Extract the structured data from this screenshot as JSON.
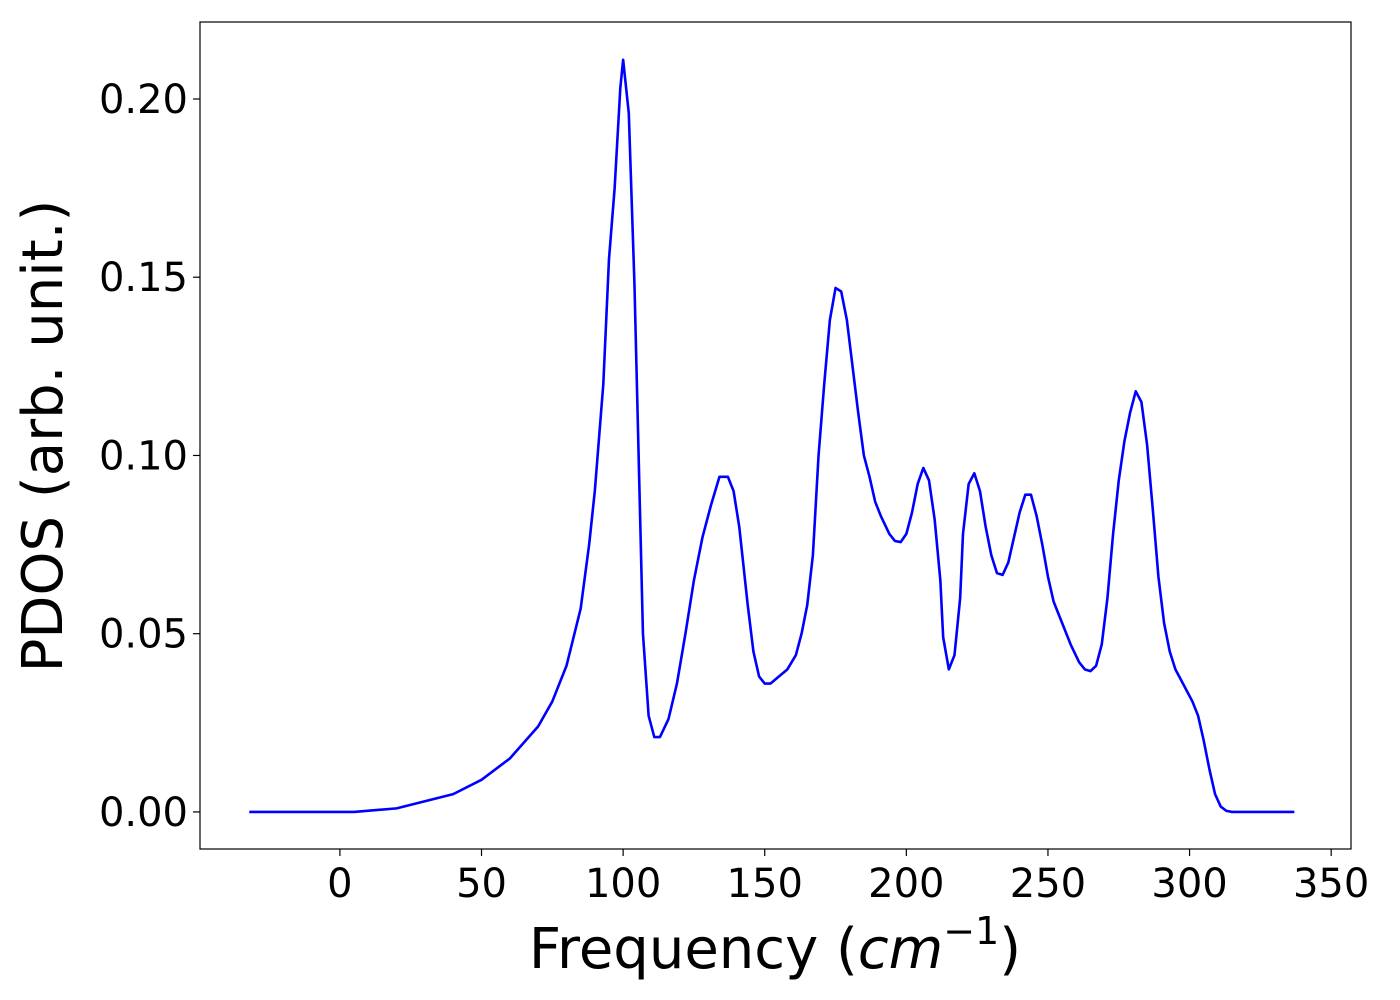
{
  "chart_data": {
    "type": "line",
    "xlabel": [
      "Frequency (",
      "cm",
      "−1",
      ")"
    ],
    "ylabel": "PDOS (arb. unit.)",
    "x": [
      -32,
      5,
      20,
      30,
      40,
      50,
      60,
      70,
      75,
      80,
      85,
      88,
      90,
      93,
      95,
      97,
      99,
      100,
      102,
      104,
      107,
      109,
      111,
      113,
      116,
      119,
      122,
      125,
      128,
      131,
      134,
      137,
      139,
      141,
      144,
      146,
      148,
      150,
      152,
      155,
      158,
      161,
      163,
      165,
      167,
      169,
      171,
      173,
      175,
      177,
      179,
      181,
      183,
      185,
      187,
      189,
      191,
      194,
      196,
      198,
      200,
      202,
      204,
      206,
      208,
      210,
      212,
      213,
      215,
      217,
      219,
      220,
      222,
      224,
      226,
      228,
      230,
      232,
      234,
      236,
      238,
      240,
      242,
      244,
      246,
      248,
      250,
      252,
      255,
      258,
      261,
      263,
      265,
      267,
      269,
      271,
      273,
      275,
      277,
      279,
      281,
      283,
      285,
      287,
      289,
      291,
      293,
      295,
      297,
      299,
      301,
      303,
      305,
      307,
      309,
      311,
      313,
      315,
      337
    ],
    "series": [
      {
        "name": "PDOS",
        "color": "#0000ff",
        "values": [
          0,
          0,
          0.001,
          0.003,
          0.005,
          0.009,
          0.015,
          0.024,
          0.031,
          0.041,
          0.057,
          0.075,
          0.09,
          0.12,
          0.155,
          0.175,
          0.203,
          0.211,
          0.196,
          0.148,
          0.05,
          0.027,
          0.021,
          0.021,
          0.026,
          0.036,
          0.05,
          0.065,
          0.077,
          0.086,
          0.094,
          0.094,
          0.09,
          0.08,
          0.058,
          0.045,
          0.038,
          0.036,
          0.036,
          0.038,
          0.04,
          0.044,
          0.05,
          0.058,
          0.072,
          0.1,
          0.12,
          0.138,
          0.147,
          0.146,
          0.138,
          0.125,
          0.112,
          0.1,
          0.094,
          0.087,
          0.083,
          0.078,
          0.076,
          0.0757,
          0.078,
          0.084,
          0.092,
          0.0965,
          0.093,
          0.082,
          0.065,
          0.049,
          0.04,
          0.044,
          0.06,
          0.078,
          0.092,
          0.095,
          0.09,
          0.08,
          0.072,
          0.067,
          0.0665,
          0.07,
          0.077,
          0.084,
          0.089,
          0.089,
          0.083,
          0.075,
          0.066,
          0.059,
          0.053,
          0.047,
          0.042,
          0.04,
          0.0395,
          0.041,
          0.047,
          0.06,
          0.078,
          0.093,
          0.104,
          0.112,
          0.118,
          0.115,
          0.103,
          0.085,
          0.066,
          0.053,
          0.045,
          0.04,
          0.037,
          0.034,
          0.031,
          0.027,
          0.02,
          0.012,
          0.005,
          0.0015,
          0.0003,
          0,
          0
        ]
      }
    ],
    "xlim": [
      -49.4,
      357
    ],
    "ylim": [
      -0.0104,
      0.2216
    ],
    "xticks": [
      0,
      50,
      100,
      150,
      200,
      250,
      300,
      350
    ],
    "yticks": [
      {
        "value": 0,
        "label": "0.00"
      },
      0.05,
      {
        "value": 0.1,
        "label": "0.10"
      },
      0.15,
      {
        "value": 0.2,
        "label": "0.20"
      }
    ]
  }
}
